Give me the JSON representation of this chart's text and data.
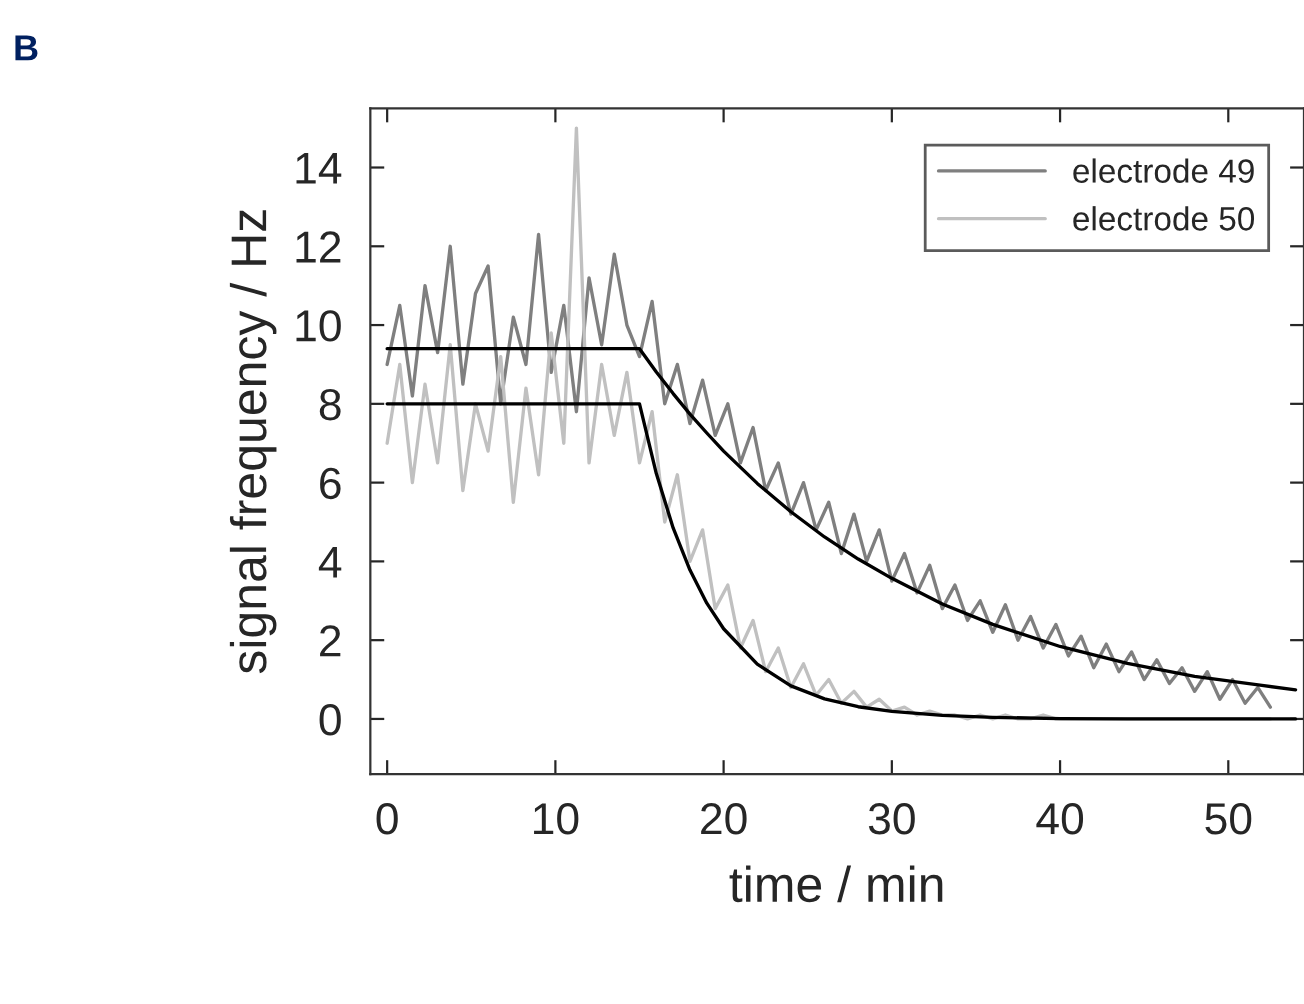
{
  "chart_data": {
    "type": "line",
    "xlabel": "time / min",
    "ylabel": "signal frequency / Hz",
    "annotations": [
      "B"
    ],
    "x": [
      0,
      0.75,
      1.5,
      2.25,
      3,
      3.75,
      4.5,
      5.25,
      6,
      6.75,
      7.5,
      8.25,
      9,
      9.75,
      10.5,
      11.25,
      12,
      12.75,
      13.5,
      14.25,
      15,
      15.75,
      16.5,
      17.25,
      18,
      18.75,
      19.5,
      20.25,
      21,
      21.75,
      22.5,
      23.25,
      24,
      24.75,
      25.5,
      26.25,
      27,
      27.75,
      28.5,
      29.25,
      30,
      30.75,
      31.5,
      32.25,
      33,
      33.75,
      34.5,
      35.25,
      36,
      36.75,
      37.5,
      38.25,
      39,
      39.75,
      40.5,
      41.25,
      42,
      42.75,
      43.5,
      44.25,
      45,
      45.75,
      46.5,
      47.25,
      48,
      48.75,
      49.5,
      50.25,
      51,
      51.75,
      52.5
    ],
    "series": [
      {
        "name": "electrode 49",
        "color": "#7f7f7f",
        "values": [
          9.0,
          10.5,
          8.2,
          11.0,
          9.3,
          12.0,
          8.5,
          10.8,
          11.5,
          8.0,
          10.2,
          9.0,
          12.3,
          8.8,
          10.5,
          7.8,
          11.2,
          9.5,
          11.8,
          10.0,
          9.2,
          10.6,
          8.0,
          9.0,
          7.5,
          8.6,
          7.2,
          8.0,
          6.5,
          7.4,
          5.8,
          6.5,
          5.2,
          6.0,
          4.8,
          5.5,
          4.2,
          5.2,
          4.0,
          4.8,
          3.5,
          4.2,
          3.2,
          3.9,
          2.8,
          3.4,
          2.5,
          3.0,
          2.2,
          2.9,
          2.0,
          2.6,
          1.8,
          2.4,
          1.6,
          2.1,
          1.3,
          1.9,
          1.2,
          1.7,
          1.0,
          1.5,
          0.9,
          1.3,
          0.7,
          1.2,
          0.5,
          1.0,
          0.4,
          0.8,
          0.3
        ]
      },
      {
        "name": "electrode 50",
        "color": "#c0c0c0",
        "values": [
          7.0,
          9.0,
          6.0,
          8.5,
          6.5,
          9.5,
          5.8,
          8.0,
          6.8,
          9.2,
          5.5,
          8.4,
          6.2,
          9.8,
          7.0,
          15.0,
          6.5,
          9.0,
          7.2,
          8.8,
          6.5,
          7.8,
          5.0,
          6.2,
          4.0,
          4.8,
          2.8,
          3.4,
          1.8,
          2.5,
          1.2,
          1.8,
          0.8,
          1.4,
          0.6,
          1.0,
          0.4,
          0.7,
          0.3,
          0.5,
          0.2,
          0.3,
          0.1,
          0.2,
          0.1,
          0.1,
          0.0,
          0.1,
          0.0,
          0.1,
          0.0,
          0.0,
          0.1,
          0.0,
          0.0,
          0.0,
          0.0,
          0.0,
          0.0,
          0.0,
          0.0,
          0.0,
          0.0,
          0.0,
          0.0,
          0.0,
          0.0,
          0.0,
          0.0,
          0.0,
          0.0
        ]
      },
      {
        "color": "#000000",
        "x": [
          0,
          15,
          16,
          17,
          18,
          19,
          20,
          22,
          24,
          26,
          28,
          30,
          33,
          36,
          40,
          44,
          48,
          52,
          54
        ],
        "values": [
          9.4,
          9.4,
          8.81,
          8.26,
          7.74,
          7.26,
          6.8,
          5.98,
          5.26,
          4.62,
          4.06,
          3.57,
          2.92,
          2.4,
          1.84,
          1.41,
          1.08,
          0.85,
          0.74
        ]
      },
      {
        "color": "#000000",
        "x": [
          0,
          15,
          16,
          17,
          18,
          19,
          20,
          22,
          24,
          26,
          28,
          30,
          33,
          36,
          40,
          44,
          48,
          52,
          54
        ],
        "values": [
          8,
          8,
          6.23,
          4.85,
          3.78,
          2.94,
          2.29,
          1.39,
          0.84,
          0.51,
          0.31,
          0.19,
          0.09,
          0.04,
          0.01,
          0,
          0,
          0,
          0
        ]
      }
    ],
    "xlim": [
      -1,
      54.5
    ],
    "ylim": [
      -1.4,
      15.5
    ],
    "xticks": [
      0,
      10,
      20,
      30,
      40,
      50
    ],
    "yticks": [
      0,
      2,
      4,
      6,
      8,
      10,
      12,
      14
    ],
    "grid": false,
    "legend": "top right",
    "marker": "none",
    "line_style": "solid"
  }
}
